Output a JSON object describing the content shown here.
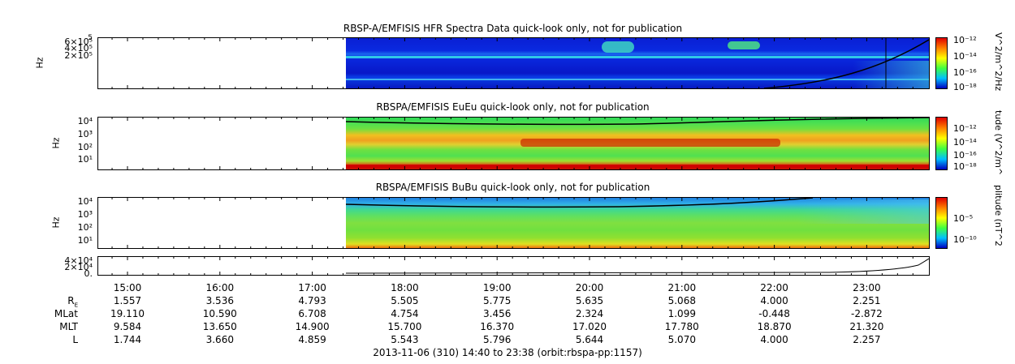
{
  "panels": [
    {
      "title": "RBSP-A/EMFISIS  HFR Spectra Data quick-look only, not for publication",
      "ylabel": "Hz",
      "yticks": [
        "6×10⁵",
        "4×10⁵",
        "2×10⁵"
      ],
      "top_tick": "5",
      "cbar_label": "V^2/m^2/Hz",
      "cbar_ticks": [
        "10⁻¹²",
        "10⁻¹⁴",
        "10⁻¹⁶",
        "10⁻¹⁸"
      ]
    },
    {
      "title": "RBSPA/EMFISIS  EuEu quick-look only, not for publication",
      "ylabel": "Hz",
      "yticks": [
        "10⁴",
        "10³",
        "10²",
        "10¹",
        "10⁰"
      ],
      "cbar_label": "tude (V^2/m^",
      "cbar_ticks": [
        "10⁻¹²",
        "10⁻¹⁴",
        "10⁻¹⁶",
        "10⁻¹⁸"
      ]
    },
    {
      "title": "RBSPA/EMFISIS  BuBu quick-look only, not for publication",
      "ylabel": "Hz",
      "yticks": [
        "10⁴",
        "10³",
        "10²",
        "10¹"
      ],
      "cbar_label": "plitude (nT^2",
      "cbar_ticks": [
        "10⁻⁵",
        "10⁻¹⁰"
      ]
    },
    {
      "yticks": [
        "4×10⁴",
        "2×10⁴",
        "0."
      ]
    }
  ],
  "chart_data": {
    "type": "heatmap",
    "x_time_labels": [
      "15:00",
      "16:00",
      "17:00",
      "18:00",
      "19:00",
      "20:00",
      "21:00",
      "22:00",
      "23:00"
    ],
    "data_start_time": "17:20",
    "ephemeris_rows": [
      {
        "label": "R",
        "sub": "E",
        "values": [
          "1.557",
          "3.536",
          "4.793",
          "5.505",
          "5.775",
          "5.635",
          "5.068",
          "4.000",
          "2.251"
        ]
      },
      {
        "label": "MLat",
        "sub": "",
        "values": [
          "19.110",
          "10.590",
          "6.708",
          "4.754",
          "3.456",
          "2.324",
          "1.099",
          "-0.448",
          "-2.872"
        ]
      },
      {
        "label": "MLT",
        "sub": "",
        "values": [
          "9.584",
          "13.650",
          "14.900",
          "15.700",
          "16.370",
          "17.020",
          "17.780",
          "18.870",
          "21.320"
        ]
      },
      {
        "label": "L",
        "sub": "",
        "values": [
          "1.744",
          "3.660",
          "4.859",
          "5.543",
          "5.796",
          "5.644",
          "5.070",
          "4.000",
          "2.257"
        ]
      }
    ],
    "footer": "2013-11-06 (310) 14:40 to 23:38 (orbit:rbspa-pp:1157)"
  }
}
